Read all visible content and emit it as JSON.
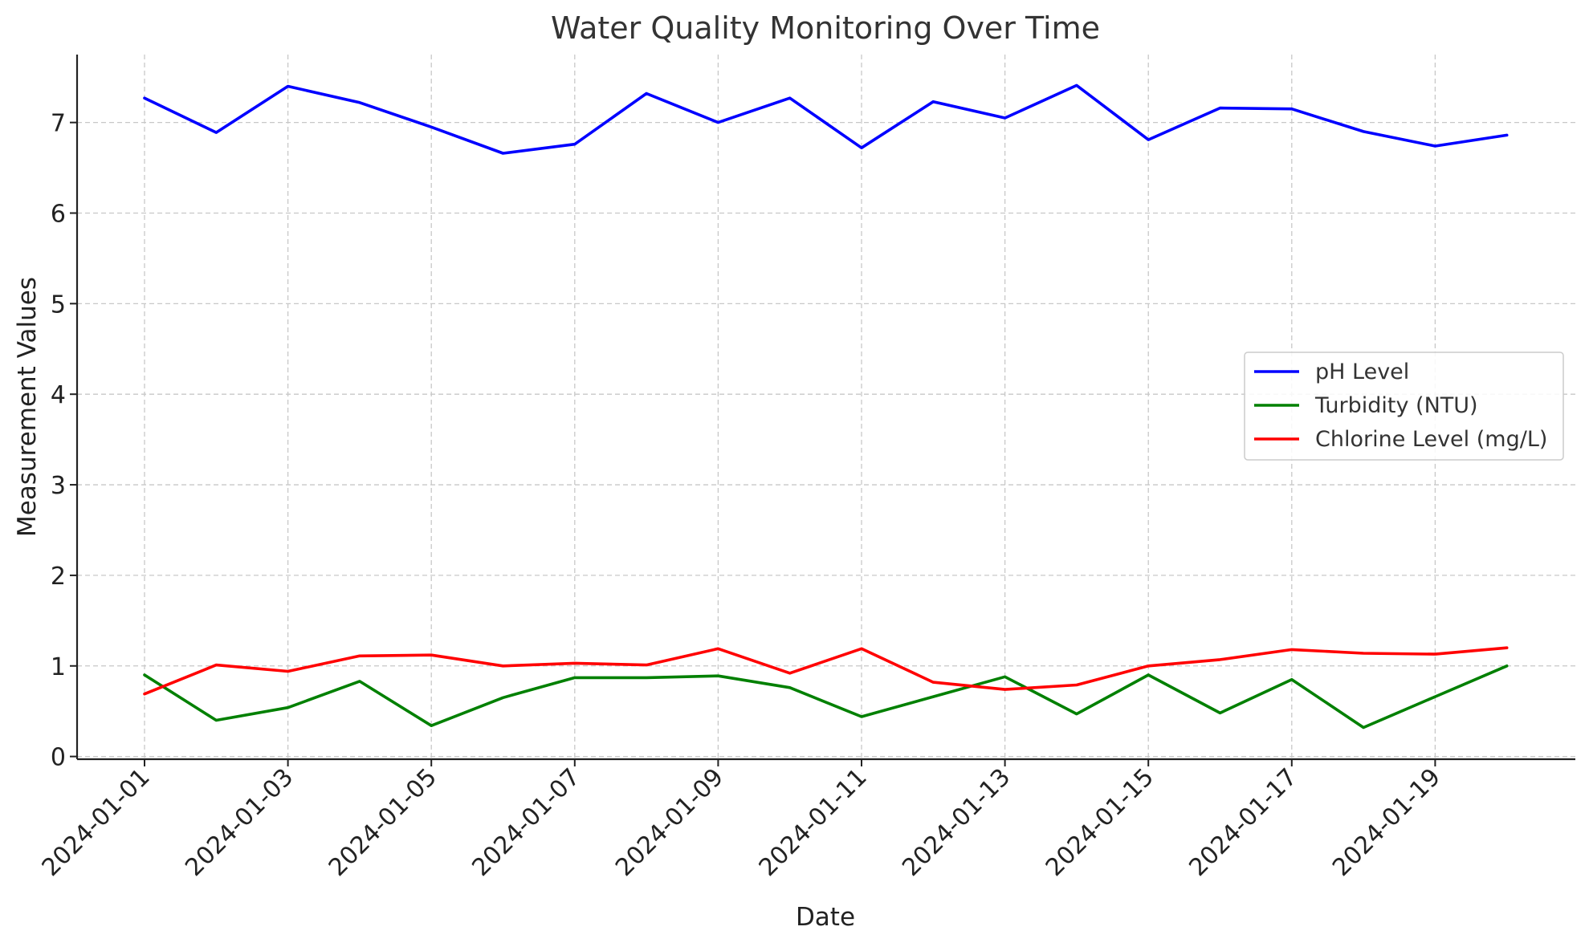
{
  "chart_data": {
    "type": "line",
    "title": "Water Quality Monitoring Over Time",
    "xlabel": "Date",
    "ylabel": "Measurement Values",
    "x": [
      "2024-01-01",
      "2024-01-02",
      "2024-01-03",
      "2024-01-04",
      "2024-01-05",
      "2024-01-06",
      "2024-01-07",
      "2024-01-08",
      "2024-01-09",
      "2024-01-10",
      "2024-01-11",
      "2024-01-12",
      "2024-01-13",
      "2024-01-14",
      "2024-01-15",
      "2024-01-16",
      "2024-01-17",
      "2024-01-18",
      "2024-01-19",
      "2024-01-20"
    ],
    "xticks": [
      "2024-01-01",
      "2024-01-03",
      "2024-01-05",
      "2024-01-07",
      "2024-01-09",
      "2024-01-11",
      "2024-01-13",
      "2024-01-15",
      "2024-01-17",
      "2024-01-19"
    ],
    "yticks": [
      0,
      1,
      2,
      3,
      4,
      5,
      6,
      7
    ],
    "ylim": [
      -0.03,
      7.75
    ],
    "grid": true,
    "legend_position": "center-right",
    "series": [
      {
        "name": "pH Level",
        "color": "#0000ff",
        "values": [
          7.27,
          6.89,
          7.4,
          7.22,
          6.95,
          6.66,
          6.76,
          7.32,
          7.0,
          7.27,
          6.72,
          7.23,
          7.05,
          7.41,
          6.81,
          7.16,
          7.15,
          6.9,
          6.74,
          6.86
        ]
      },
      {
        "name": "Turbidity (NTU)",
        "color": "#008000",
        "values": [
          0.9,
          0.4,
          0.54,
          0.83,
          0.34,
          0.65,
          0.87,
          0.87,
          0.89,
          0.76,
          0.44,
          0.66,
          0.88,
          0.47,
          0.9,
          0.48,
          0.85,
          0.32,
          0.66,
          1.0
        ]
      },
      {
        "name": "Chlorine Level (mg/L)",
        "color": "#ff0000",
        "values": [
          0.69,
          1.01,
          0.94,
          1.11,
          1.12,
          1.0,
          1.03,
          1.01,
          1.19,
          0.92,
          1.19,
          0.82,
          0.74,
          0.79,
          1.0,
          1.07,
          1.18,
          1.14,
          1.13,
          1.2
        ]
      }
    ]
  }
}
